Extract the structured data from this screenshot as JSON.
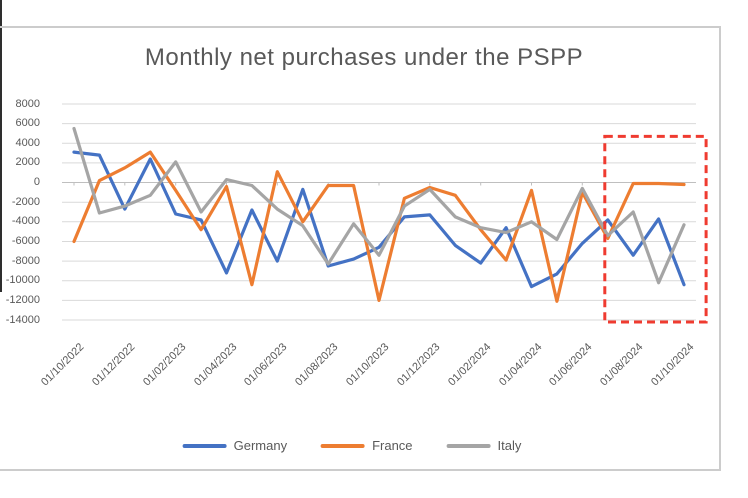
{
  "chart_data": {
    "type": "line",
    "title": "Monthly net purchases under the PSPP",
    "x": [
      "01/10/2022",
      "01/11/2022",
      "01/12/2022",
      "01/01/2023",
      "01/02/2023",
      "01/03/2023",
      "01/04/2023",
      "01/05/2023",
      "01/06/2023",
      "01/07/2023",
      "01/08/2023",
      "01/09/2023",
      "01/10/2023",
      "01/11/2023",
      "01/12/2023",
      "01/01/2024",
      "01/02/2024",
      "01/03/2024",
      "01/04/2024",
      "01/05/2024",
      "01/06/2024",
      "01/07/2024",
      "01/08/2024",
      "01/09/2024",
      "01/10/2024"
    ],
    "x_tick_labels": [
      "01/10/2022",
      "01/12/2022",
      "01/02/2023",
      "01/04/2023",
      "01/06/2023",
      "01/08/2023",
      "01/10/2023",
      "01/12/2023",
      "01/02/2024",
      "01/04/2024",
      "01/06/2024",
      "01/08/2024",
      "01/10/2024"
    ],
    "x_tick_every": 2,
    "series": [
      {
        "name": "Germany",
        "color": "#4472C4",
        "values": [
          3100,
          2800,
          -2700,
          2400,
          -3200,
          -3800,
          -9200,
          -2800,
          -8000,
          -700,
          -8500,
          -7800,
          -6600,
          -3500,
          -3300,
          -6400,
          -8200,
          -4600,
          -10600,
          -9300,
          -6200,
          -3800,
          -7400,
          -3700,
          -10400
        ]
      },
      {
        "name": "France",
        "color": "#ED7D31",
        "values": [
          -6000,
          200,
          1500,
          3100,
          -800,
          -4800,
          -400,
          -10400,
          1100,
          -4000,
          -300,
          -300,
          -12000,
          -1600,
          -500,
          -1300,
          -4800,
          -7900,
          -800,
          -12100,
          -1000,
          -5700,
          -100,
          -100,
          -200
        ]
      },
      {
        "name": "Italy",
        "color": "#A5A5A5",
        "values": [
          5500,
          -3100,
          -2400,
          -1300,
          2100,
          -3000,
          300,
          -300,
          -2700,
          -4400,
          -8300,
          -4200,
          -7400,
          -2400,
          -700,
          -3500,
          -4600,
          -5100,
          -4000,
          -5800,
          -600,
          -5400,
          -3000,
          -10200,
          -4300
        ]
      }
    ],
    "y_ticks": [
      8000,
      6000,
      4000,
      2000,
      0,
      -2000,
      -4000,
      -6000,
      -8000,
      -10000,
      -12000,
      -14000
    ],
    "ylim": [
      -14000,
      8000
    ],
    "grid": true,
    "grid_color": "#D9D9D9",
    "zero_axis_color": "#BFBFBF",
    "legend_position": "bottom",
    "annotation_box": {
      "description": "dashed highlight rectangle around recent months",
      "x_from": "01/07/2024",
      "x_to": "01/10/2024",
      "y_top": 4700,
      "y_bottom": -14200,
      "color": "#EF3B30",
      "style": "dashed"
    }
  }
}
